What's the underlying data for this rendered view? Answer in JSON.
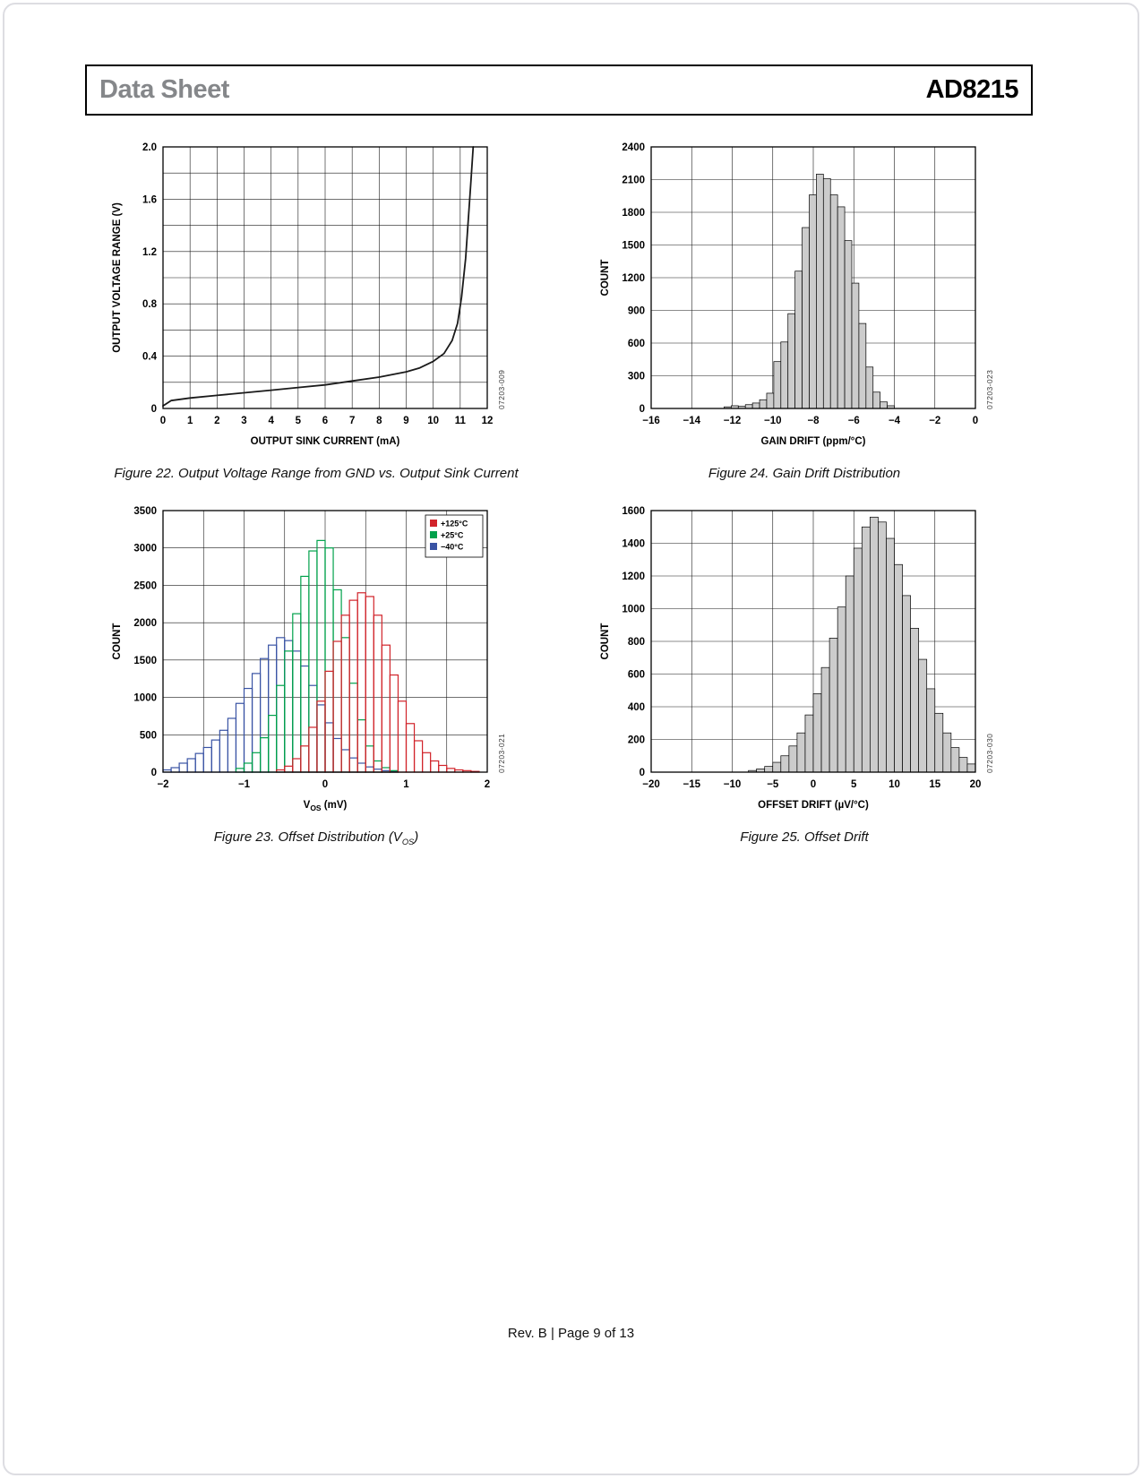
{
  "header": {
    "doc_type": "Data Sheet",
    "part_number": "AD8215"
  },
  "footer": {
    "text": "Rev. B | Page 9 of 13"
  },
  "figures": [
    {
      "caption_parts": [
        {
          "text": "Figure 22. Output Voltage Range from GND vs. Output Sink Current"
        }
      ],
      "watermark": "07203-009"
    },
    {
      "caption_parts": [
        {
          "text": "Figure 24. Gain Drift Distribution"
        }
      ],
      "watermark": "07203-023"
    },
    {
      "caption_parts": [
        {
          "text": "Figure 23. Offset Distribution (V"
        },
        {
          "text": "OS",
          "sub": true
        },
        {
          "text": ")"
        }
      ],
      "watermark": "07203-021"
    },
    {
      "caption_parts": [
        {
          "text": "Figure 25. Offset Drift"
        }
      ],
      "watermark": "07203-030"
    }
  ],
  "chart_data": [
    {
      "type": "line",
      "title": "Figure 22. Output Voltage Range from GND vs. Output Sink Current",
      "xlabel_parts": [
        {
          "text": "OUTPUT SINK CURRENT (mA)"
        }
      ],
      "ylabel": "OUTPUT VOLTAGE RANGE (V)",
      "xlim": [
        0,
        12
      ],
      "ylim": [
        0,
        2
      ],
      "xgrid": 1,
      "ygrid": 0.2,
      "xticks": [
        0,
        1,
        2,
        3,
        4,
        5,
        6,
        7,
        8,
        9,
        10,
        11,
        12
      ],
      "xtick_labels": [
        "0",
        "1",
        "2",
        "3",
        "4",
        "5",
        "6",
        "7",
        "8",
        "9",
        "10",
        "11",
        "12"
      ],
      "yticks": [
        0,
        0.4,
        0.8,
        1.2,
        1.6,
        2
      ],
      "ytick_labels": [
        "0",
        "0.4",
        "0.8",
        "1.2",
        "1.6",
        "2.0"
      ],
      "series": [
        {
          "name": "output-voltage-range",
          "color": "#1a1a1a",
          "points": [
            [
              0,
              0.02
            ],
            [
              0.3,
              0.06
            ],
            [
              1,
              0.08
            ],
            [
              2,
              0.1
            ],
            [
              3,
              0.12
            ],
            [
              4,
              0.14
            ],
            [
              5,
              0.16
            ],
            [
              6,
              0.18
            ],
            [
              7,
              0.21
            ],
            [
              8,
              0.24
            ],
            [
              9,
              0.28
            ],
            [
              9.5,
              0.31
            ],
            [
              10,
              0.36
            ],
            [
              10.4,
              0.42
            ],
            [
              10.7,
              0.52
            ],
            [
              10.9,
              0.65
            ],
            [
              11.05,
              0.85
            ],
            [
              11.2,
              1.15
            ],
            [
              11.3,
              1.45
            ],
            [
              11.4,
              1.75
            ],
            [
              11.48,
              2.0
            ]
          ]
        }
      ]
    },
    {
      "type": "histogram",
      "title": "Figure 24. Gain Drift Distribution",
      "xlabel_parts": [
        {
          "text": "GAIN DRIFT (ppm/°C)"
        }
      ],
      "ylabel": "COUNT",
      "xlim": [
        -16,
        0
      ],
      "ylim": [
        0,
        2400
      ],
      "xgrid": 2,
      "ygrid": 300,
      "xticks": [
        -16,
        -14,
        -12,
        -10,
        -8,
        -6,
        -4,
        -2,
        0
      ],
      "xtick_labels": [
        "−16",
        "−14",
        "−12",
        "−10",
        "−8",
        "−6",
        "−4",
        "−2",
        "0"
      ],
      "yticks": [
        0,
        300,
        600,
        900,
        1200,
        1500,
        1800,
        2100,
        2400
      ],
      "ytick_labels": [
        "0",
        "300",
        "600",
        "900",
        "1200",
        "1500",
        "1800",
        "2100",
        "2400"
      ],
      "bar_fill": "#cccccc",
      "bin_start": -12.4,
      "bin_width": 0.35,
      "counts": [
        15,
        25,
        20,
        35,
        50,
        80,
        140,
        430,
        610,
        870,
        1260,
        1660,
        1960,
        2150,
        2110,
        1960,
        1850,
        1540,
        1150,
        780,
        380,
        150,
        60,
        25
      ]
    },
    {
      "type": "histogram-outline",
      "title": "Figure 23. Offset Distribution (VOS)",
      "xlabel_parts": [
        {
          "text": "V"
        },
        {
          "text": "OS",
          "sub": true
        },
        {
          "text": " (mV)"
        }
      ],
      "ylabel": "COUNT",
      "xlim": [
        -2,
        2
      ],
      "ylim": [
        0,
        3500
      ],
      "xgrid": 0.5,
      "ygrid": 500,
      "xticks": [
        -2,
        -1,
        0,
        1,
        2
      ],
      "xtick_labels": [
        "−2",
        "−1",
        "0",
        "1",
        "2"
      ],
      "yticks": [
        0,
        500,
        1000,
        1500,
        2000,
        2500,
        3000,
        3500
      ],
      "ytick_labels": [
        "0",
        "500",
        "1000",
        "1500",
        "2000",
        "2500",
        "3000",
        "3500"
      ],
      "bin_width": 0.1,
      "legend": [
        {
          "label": "+125°C",
          "color": "#d1232a"
        },
        {
          "label": "+25°C",
          "color": "#00a14b"
        },
        {
          "label": "−40°C",
          "color": "#3953a4"
        }
      ],
      "series": [
        {
          "name": "−40°C",
          "color": "#3953a4",
          "bin_start": -2.0,
          "counts": [
            30,
            60,
            120,
            180,
            250,
            330,
            430,
            560,
            720,
            920,
            1120,
            1320,
            1520,
            1700,
            1800,
            1760,
            1620,
            1420,
            1160,
            900,
            660,
            450,
            300,
            190,
            120,
            70,
            40,
            20,
            10
          ]
        },
        {
          "name": "+25°C",
          "color": "#00a14b",
          "bin_start": -1.1,
          "counts": [
            50,
            120,
            260,
            460,
            760,
            1160,
            1620,
            2120,
            2620,
            2960,
            3100,
            3000,
            2440,
            1800,
            1190,
            700,
            350,
            150,
            60,
            20
          ]
        },
        {
          "name": "+125°C",
          "color": "#d1232a",
          "bin_start": -0.6,
          "counts": [
            30,
            80,
            180,
            350,
            600,
            950,
            1350,
            1750,
            2100,
            2300,
            2400,
            2350,
            2100,
            1700,
            1300,
            950,
            650,
            420,
            260,
            150,
            90,
            50,
            30,
            20,
            10
          ]
        }
      ]
    },
    {
      "type": "histogram",
      "title": "Figure 25. Offset Drift",
      "xlabel_parts": [
        {
          "text": "OFFSET DRIFT (µV/°C)"
        }
      ],
      "ylabel": "COUNT",
      "xlim": [
        -20,
        20
      ],
      "ylim": [
        0,
        1600
      ],
      "xgrid": 5,
      "ygrid": 200,
      "xticks": [
        -20,
        -15,
        -10,
        -5,
        0,
        5,
        10,
        15,
        20
      ],
      "xtick_labels": [
        "−20",
        "−15",
        "−10",
        "−5",
        "0",
        "5",
        "10",
        "15",
        "20"
      ],
      "yticks": [
        0,
        200,
        400,
        600,
        800,
        1000,
        1200,
        1400,
        1600
      ],
      "ytick_labels": [
        "0",
        "200",
        "400",
        "600",
        "800",
        "1000",
        "1200",
        "1400",
        "1600"
      ],
      "bar_fill": "#cccccc",
      "bin_start": -8,
      "bin_width": 1,
      "counts": [
        10,
        20,
        35,
        60,
        100,
        160,
        240,
        350,
        480,
        640,
        820,
        1010,
        1200,
        1370,
        1500,
        1560,
        1530,
        1430,
        1270,
        1080,
        880,
        690,
        510,
        360,
        240,
        150,
        90,
        50
      ]
    }
  ]
}
